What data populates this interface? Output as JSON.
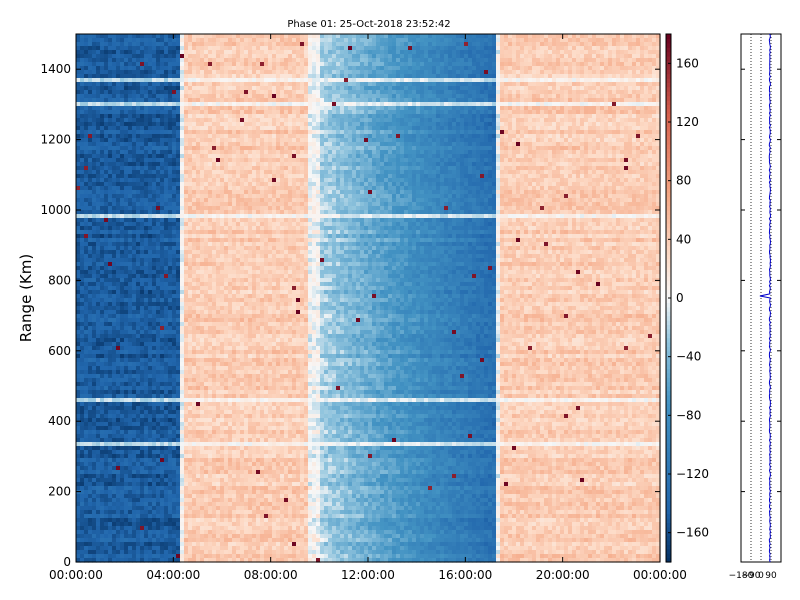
{
  "title": "Phase 01: 25-Oct-2018 23:52:42",
  "chart_data": [
    {
      "type": "heatmap",
      "title": "Phase 01: 25-Oct-2018 23:52:42",
      "xlabel": "",
      "ylabel": "Range (Km)",
      "x_tick_labels": [
        "00:00:00",
        "04:00:00",
        "08:00:00",
        "12:00:00",
        "16:00:00",
        "20:00:00",
        "00:00:00"
      ],
      "xlim_hours": [
        0,
        24
      ],
      "ylim": [
        0,
        1500
      ],
      "y_ticks": [
        0,
        200,
        400,
        600,
        800,
        1000,
        1200,
        1400
      ],
      "colorbar": {
        "vmin": -180,
        "vmax": 180,
        "ticks": [
          -160,
          -120,
          -80,
          -40,
          0,
          40,
          80,
          120,
          160
        ],
        "colormap": "RdBu_r"
      },
      "pattern_segments": [
        {
          "start_hour": 0.0,
          "end_hour": 4.2,
          "phase": -150
        },
        {
          "start_hour": 4.5,
          "end_hour": 9.6,
          "phase": 40
        },
        {
          "start_hour": 10.0,
          "end_hour": 17.3,
          "phase_start": -20,
          "phase_end": -130
        },
        {
          "start_hour": 17.5,
          "end_hour": 24.0,
          "phase": 40
        }
      ],
      "bright_range_bands_km": [
        1370,
        1300,
        980,
        455,
        340
      ]
    },
    {
      "type": "line",
      "xlim": [
        -180,
        180
      ],
      "x_tick_labels": [
        "−180",
        "−90",
        "0",
        "90"
      ],
      "ylim": [
        0,
        1500
      ],
      "line_color": "#0000cc",
      "approx_value": 80,
      "spike_range_km": 755,
      "spike_value": -10
    }
  ]
}
